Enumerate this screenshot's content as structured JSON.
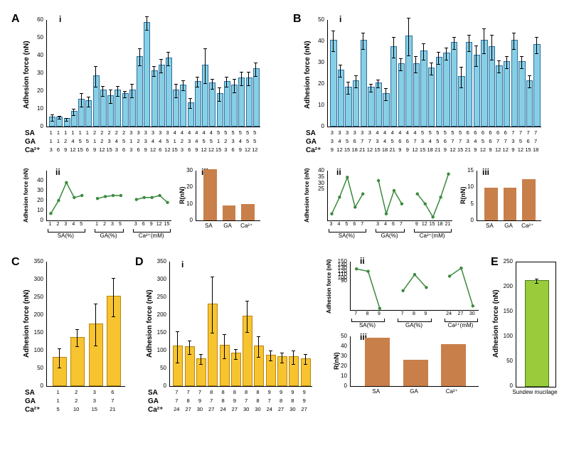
{
  "colors": {
    "bar_blue": "#87cfe4",
    "bar_blue_stroke": "#2e6ea0",
    "bar_orange": "#c97f4a",
    "bar_yellow": "#f7c430",
    "bar_green": "#9acb3a",
    "line_green": "#3a8a3d",
    "axis": "#000000",
    "bg": "#ffffff"
  },
  "A": {
    "i": {
      "ylabel": "Adhesion force (nN)",
      "ymax": 60,
      "ytick_step": 10,
      "values": [
        5,
        5,
        4,
        8,
        15,
        14,
        28,
        20,
        17,
        20,
        18,
        20,
        39,
        58,
        31,
        34,
        38,
        20,
        23,
        13,
        25,
        34,
        24,
        18,
        25,
        23,
        27,
        27,
        32
      ],
      "errs": [
        2,
        1,
        1,
        2,
        4,
        3,
        6,
        3,
        4,
        3,
        2,
        4,
        5,
        4,
        3,
        4,
        4,
        4,
        3,
        3,
        3,
        10,
        3,
        4,
        3,
        4,
        4,
        4,
        4
      ],
      "SA": [
        "1",
        "1",
        "1",
        "1",
        "1",
        "1",
        "2",
        "2",
        "2",
        "2",
        "2",
        "3",
        "3",
        "3",
        "3",
        "3",
        "3",
        "4",
        "4",
        "4",
        "4",
        "4",
        "4",
        "5",
        "5",
        "5",
        "5",
        "5",
        "5"
      ],
      "GA": [
        "1",
        "1",
        "2",
        "4",
        "5",
        "5",
        "1",
        "2",
        "3",
        "4",
        "5",
        "1",
        "2",
        "3",
        "4",
        "4",
        "5",
        "1",
        "2",
        "3",
        "4",
        "5",
        "5",
        "1",
        "2",
        "3",
        "4",
        "5",
        "5"
      ],
      "Ca": [
        "3",
        "6",
        "9",
        "12",
        "15",
        "6",
        "9",
        "12",
        "15",
        "3",
        "6",
        "3",
        "6",
        "9",
        "12",
        "6",
        "12",
        "15",
        "3",
        "6",
        "9",
        "12",
        "12",
        "15",
        "3",
        "6",
        "9",
        "12",
        "12"
      ]
    },
    "ii": {
      "ylabel": "Adhesion force (nN)",
      "ymax": 50,
      "yticks": [
        0,
        10,
        20,
        30,
        40
      ],
      "groups": [
        {
          "label": "SA(%)",
          "x": [
            "1",
            "2",
            "3",
            "4",
            "5"
          ],
          "y": [
            7,
            20,
            38,
            23,
            25
          ]
        },
        {
          "label": "GA(%)",
          "x": [
            "1",
            "2",
            "3",
            "5"
          ],
          "y": [
            22,
            24,
            25,
            25
          ]
        },
        {
          "label": "Ca²⁺(mM)",
          "x": [
            "3",
            "6",
            "9",
            "12",
            "15"
          ],
          "y": [
            21,
            23,
            23,
            25,
            18
          ]
        }
      ]
    },
    "iii": {
      "ylabel": "R(nN)",
      "ymax": 30,
      "ytick_step": 10,
      "cats": [
        "SA",
        "GA",
        "Ca²⁺"
      ],
      "values": [
        30,
        8,
        9
      ]
    }
  },
  "B": {
    "i": {
      "ylabel": "Adhesion force (nN)",
      "ymax": 50,
      "ytick_step": 10,
      "values": [
        40,
        26,
        18,
        21,
        40,
        18,
        20,
        15,
        37,
        29,
        42,
        29,
        35,
        27,
        32,
        34,
        39,
        23,
        39,
        33,
        40,
        37,
        28,
        30,
        40,
        30,
        21,
        38
      ],
      "errs": [
        5,
        3,
        3,
        3,
        4,
        2,
        2,
        3,
        5,
        3,
        9,
        4,
        4,
        3,
        3,
        3,
        3,
        5,
        4,
        5,
        6,
        6,
        3,
        3,
        4,
        3,
        3,
        4
      ],
      "SA": [
        "3",
        "3",
        "3",
        "3",
        "3",
        "3",
        "4",
        "4",
        "4",
        "4",
        "4",
        "4",
        "5",
        "5",
        "5",
        "5",
        "5",
        "5",
        "6",
        "6",
        "6",
        "6",
        "6",
        "6",
        "7",
        "7",
        "7",
        "7"
      ],
      "GA": [
        "3",
        "4",
        "5",
        "6",
        "7",
        "7",
        "3",
        "4",
        "5",
        "6",
        "6",
        "7",
        "3",
        "4",
        "5",
        "6",
        "7",
        "7",
        "3",
        "4",
        "5",
        "6",
        "7",
        "7",
        "3",
        "5",
        "6",
        "7"
      ],
      "Ca": [
        "9",
        "12",
        "15",
        "18",
        "21",
        "12",
        "15",
        "18",
        "21",
        "9",
        "9",
        "12",
        "15",
        "18",
        "21",
        "9",
        "12",
        "15",
        "21",
        "9",
        "12",
        "9",
        "12",
        "12",
        "9",
        "12",
        "15",
        "18"
      ]
    },
    "ii": {
      "ylabel": "Adhesion force (nN)",
      "ymax": 40,
      "yticks": [
        25,
        30,
        35,
        40
      ],
      "groups": [
        {
          "label": "SA(%)",
          "x": [
            "3",
            "4",
            "5",
            "6",
            "7"
          ],
          "y": [
            27,
            32,
            38,
            29,
            33
          ]
        },
        {
          "label": "GA(%)",
          "x": [
            "3",
            "4",
            "6",
            "7"
          ],
          "y": [
            37,
            27,
            34,
            30
          ]
        },
        {
          "label": "Ca²⁺(mM)",
          "x": [
            "9",
            "12",
            "15",
            "18",
            "21"
          ],
          "y": [
            33,
            30,
            26,
            32,
            39
          ]
        }
      ]
    },
    "iii": {
      "ylabel": "R(nN)",
      "ymax": 15,
      "ytick_step": 5,
      "cats": [
        "SA",
        "GA",
        "Ca²⁺"
      ],
      "values": [
        9.5,
        9.5,
        12
      ]
    }
  },
  "C": {
    "ylabel": "Adhesion force (nN)",
    "ymax": 350,
    "ytick_step": 50,
    "values": [
      78,
      135,
      172,
      250
    ],
    "errs": [
      28,
      25,
      60,
      55
    ],
    "SA": [
      "1",
      "2",
      "3",
      "6"
    ],
    "GA": [
      "1",
      "2",
      "3",
      "7"
    ],
    "Ca": [
      "5",
      "10",
      "15",
      "21"
    ]
  },
  "D": {
    "i": {
      "ylabel": "Adhesion force (nN)",
      "ymax": 350,
      "ytick_step": 50,
      "values": [
        110,
        108,
        75,
        228,
        112,
        90,
        195,
        110,
        85,
        80,
        80,
        75
      ],
      "errs": [
        45,
        20,
        15,
        80,
        35,
        15,
        45,
        30,
        15,
        15,
        20,
        15
      ],
      "SA": [
        "7",
        "7",
        "7",
        "8",
        "8",
        "8",
        "8",
        "8",
        "9",
        "9",
        "9",
        "9"
      ],
      "GA": [
        "7",
        "8",
        "9",
        "7",
        "8",
        "9",
        "7",
        "8",
        "7",
        "8",
        "8",
        "9"
      ],
      "Ca": [
        "24",
        "27",
        "30",
        "27",
        "24",
        "27",
        "30",
        "30",
        "24",
        "27",
        "30",
        "27"
      ]
    },
    "ii": {
      "ylabel": "Adhesion force (nN)",
      "ymax": 150,
      "yticks": [
        90,
        100,
        110,
        120,
        130,
        140,
        150
      ],
      "groups": [
        {
          "label": "SA(%)",
          "x": [
            "7",
            "8",
            "9"
          ],
          "y": [
            141,
            138,
            92
          ]
        },
        {
          "label": "GA(%)",
          "x": [
            "7",
            "8",
            "9"
          ],
          "y": [
            114,
            134,
            118
          ]
        },
        {
          "label": "Ca²⁺(mM)",
          "x": [
            "24",
            "27",
            "30"
          ],
          "y": [
            132,
            142,
            95
          ]
        }
      ]
    },
    "iii": {
      "ylabel": "R(nN)",
      "ymax": 50,
      "ytick_step": 10,
      "cats": [
        "SA",
        "GA",
        "Ca²⁺"
      ],
      "values": [
        47,
        25,
        41
      ]
    }
  },
  "E": {
    "ylabel": "Adhesion force (nN)",
    "ymax": 250,
    "ytick_step": 50,
    "label": "Sundew mucilage",
    "value": 212,
    "err": 5
  }
}
